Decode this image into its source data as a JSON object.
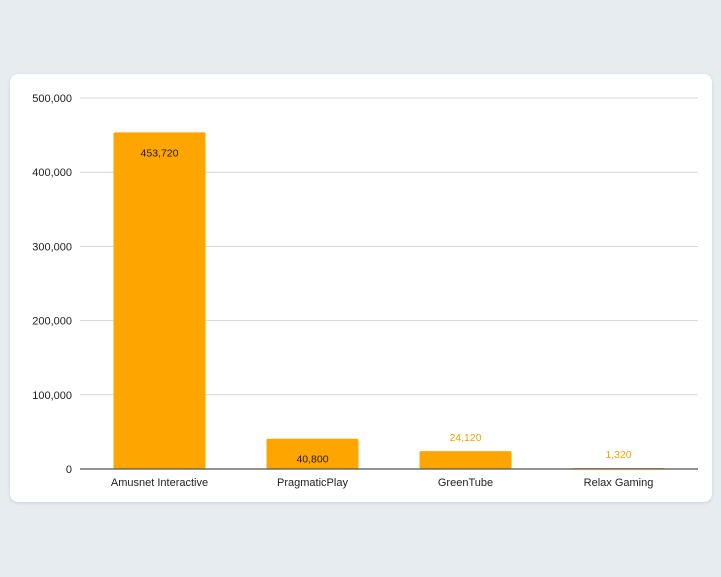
{
  "chart_data": {
    "type": "bar",
    "categories": [
      "Amusnet Interactive",
      "PragmaticPlay",
      "GreenTube",
      "Relax Gaming"
    ],
    "values": [
      453720,
      40800,
      24120,
      1320
    ],
    "data_labels": [
      "453,720",
      "40,800",
      "24,120",
      "1,320"
    ],
    "y_ticks": [
      0,
      100000,
      200000,
      300000,
      400000,
      500000
    ],
    "y_tick_labels": [
      "0",
      "100,000",
      "200,000",
      "300,000",
      "400,000",
      "500,000"
    ],
    "ylim": [
      0,
      500000
    ],
    "grid": true,
    "legend": "none",
    "colors": {
      "bar": "#ffa500",
      "gridline": "#d6d6d6",
      "axis": "#555555",
      "label_inside": "#1a1a1a",
      "label_outside": "#f0a400"
    }
  }
}
